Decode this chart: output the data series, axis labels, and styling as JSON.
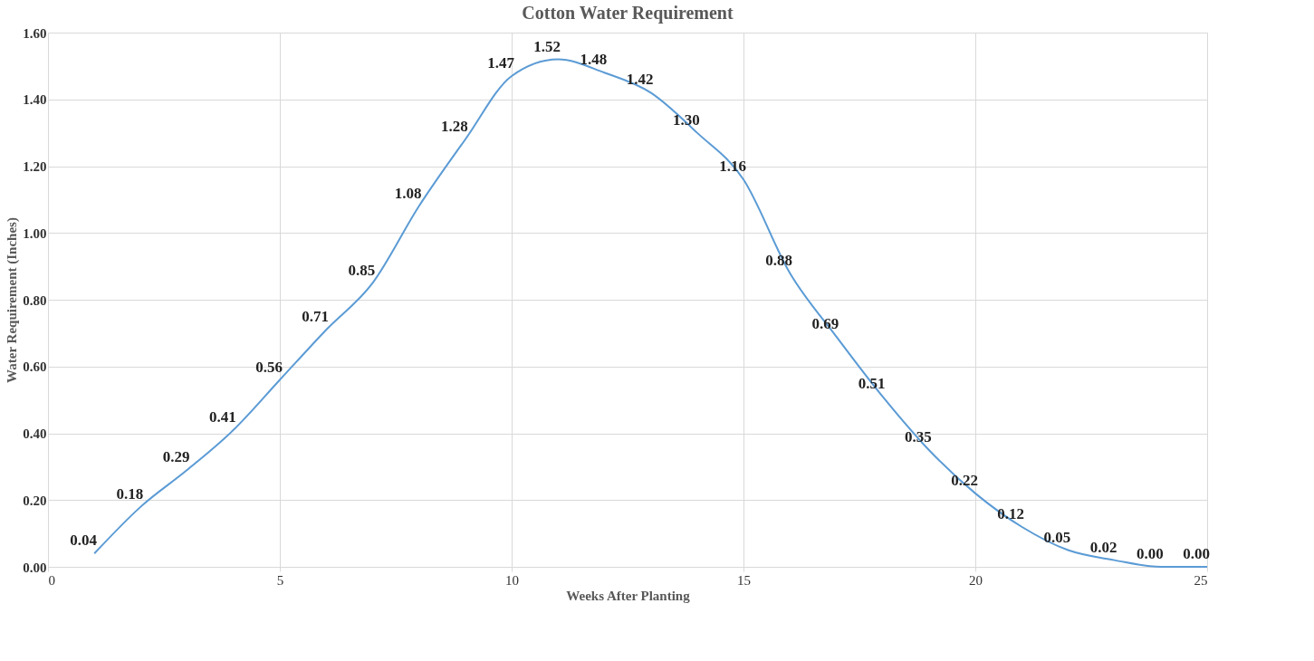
{
  "chart_data": {
    "type": "line",
    "title": "Cotton Water Requirement",
    "xlabel": "Weeks After Planting",
    "ylabel": "Water Requirement (Inches)",
    "x": [
      1,
      2,
      3,
      4,
      5,
      6,
      7,
      8,
      9,
      10,
      11,
      12,
      13,
      14,
      15,
      16,
      17,
      18,
      19,
      20,
      21,
      22,
      23,
      24,
      25
    ],
    "series": [
      {
        "color": "#5b9bd5",
        "values": [
          0.04,
          0.18,
          0.29,
          0.41,
          0.56,
          0.71,
          0.85,
          1.08,
          1.28,
          1.47,
          1.52,
          1.48,
          1.42,
          1.3,
          1.16,
          0.88,
          0.69,
          0.51,
          0.35,
          0.22,
          0.12,
          0.05,
          0.02,
          0.0,
          0.0
        ],
        "value_labels": [
          "0.04",
          "0.18",
          "0.29",
          "0.41",
          "0.56",
          "0.71",
          "0.85",
          "1.08",
          "1.28",
          "1.47",
          "1.52",
          "1.48",
          "1.42",
          "1.30",
          "1.16",
          "0.88",
          "0.69",
          "0.51",
          "0.35",
          "0.22",
          "0.12",
          "0.05",
          "0.02",
          "0.00",
          "0.00"
        ]
      }
    ],
    "xlim": [
      0,
      25
    ],
    "xticks": [
      0,
      5,
      10,
      15,
      20,
      25
    ],
    "ylim": [
      0,
      1.6
    ],
    "yticks": [
      {
        "value": 0,
        "label": "0.00"
      },
      {
        "value": 0.2,
        "label": "0.20"
      },
      {
        "value": 0.4,
        "label": "0.40"
      },
      {
        "value": 0.6,
        "label": "0.60"
      },
      {
        "value": 0.8,
        "label": "0.80"
      },
      {
        "value": 1.0,
        "label": "1.00"
      },
      {
        "value": 1.2,
        "label": "1.20"
      },
      {
        "value": 1.4,
        "label": "1.40"
      },
      {
        "value": 1.6,
        "label": "1.60"
      }
    ],
    "grid": true,
    "marker": "none",
    "line_style": "solid",
    "legend": false
  }
}
